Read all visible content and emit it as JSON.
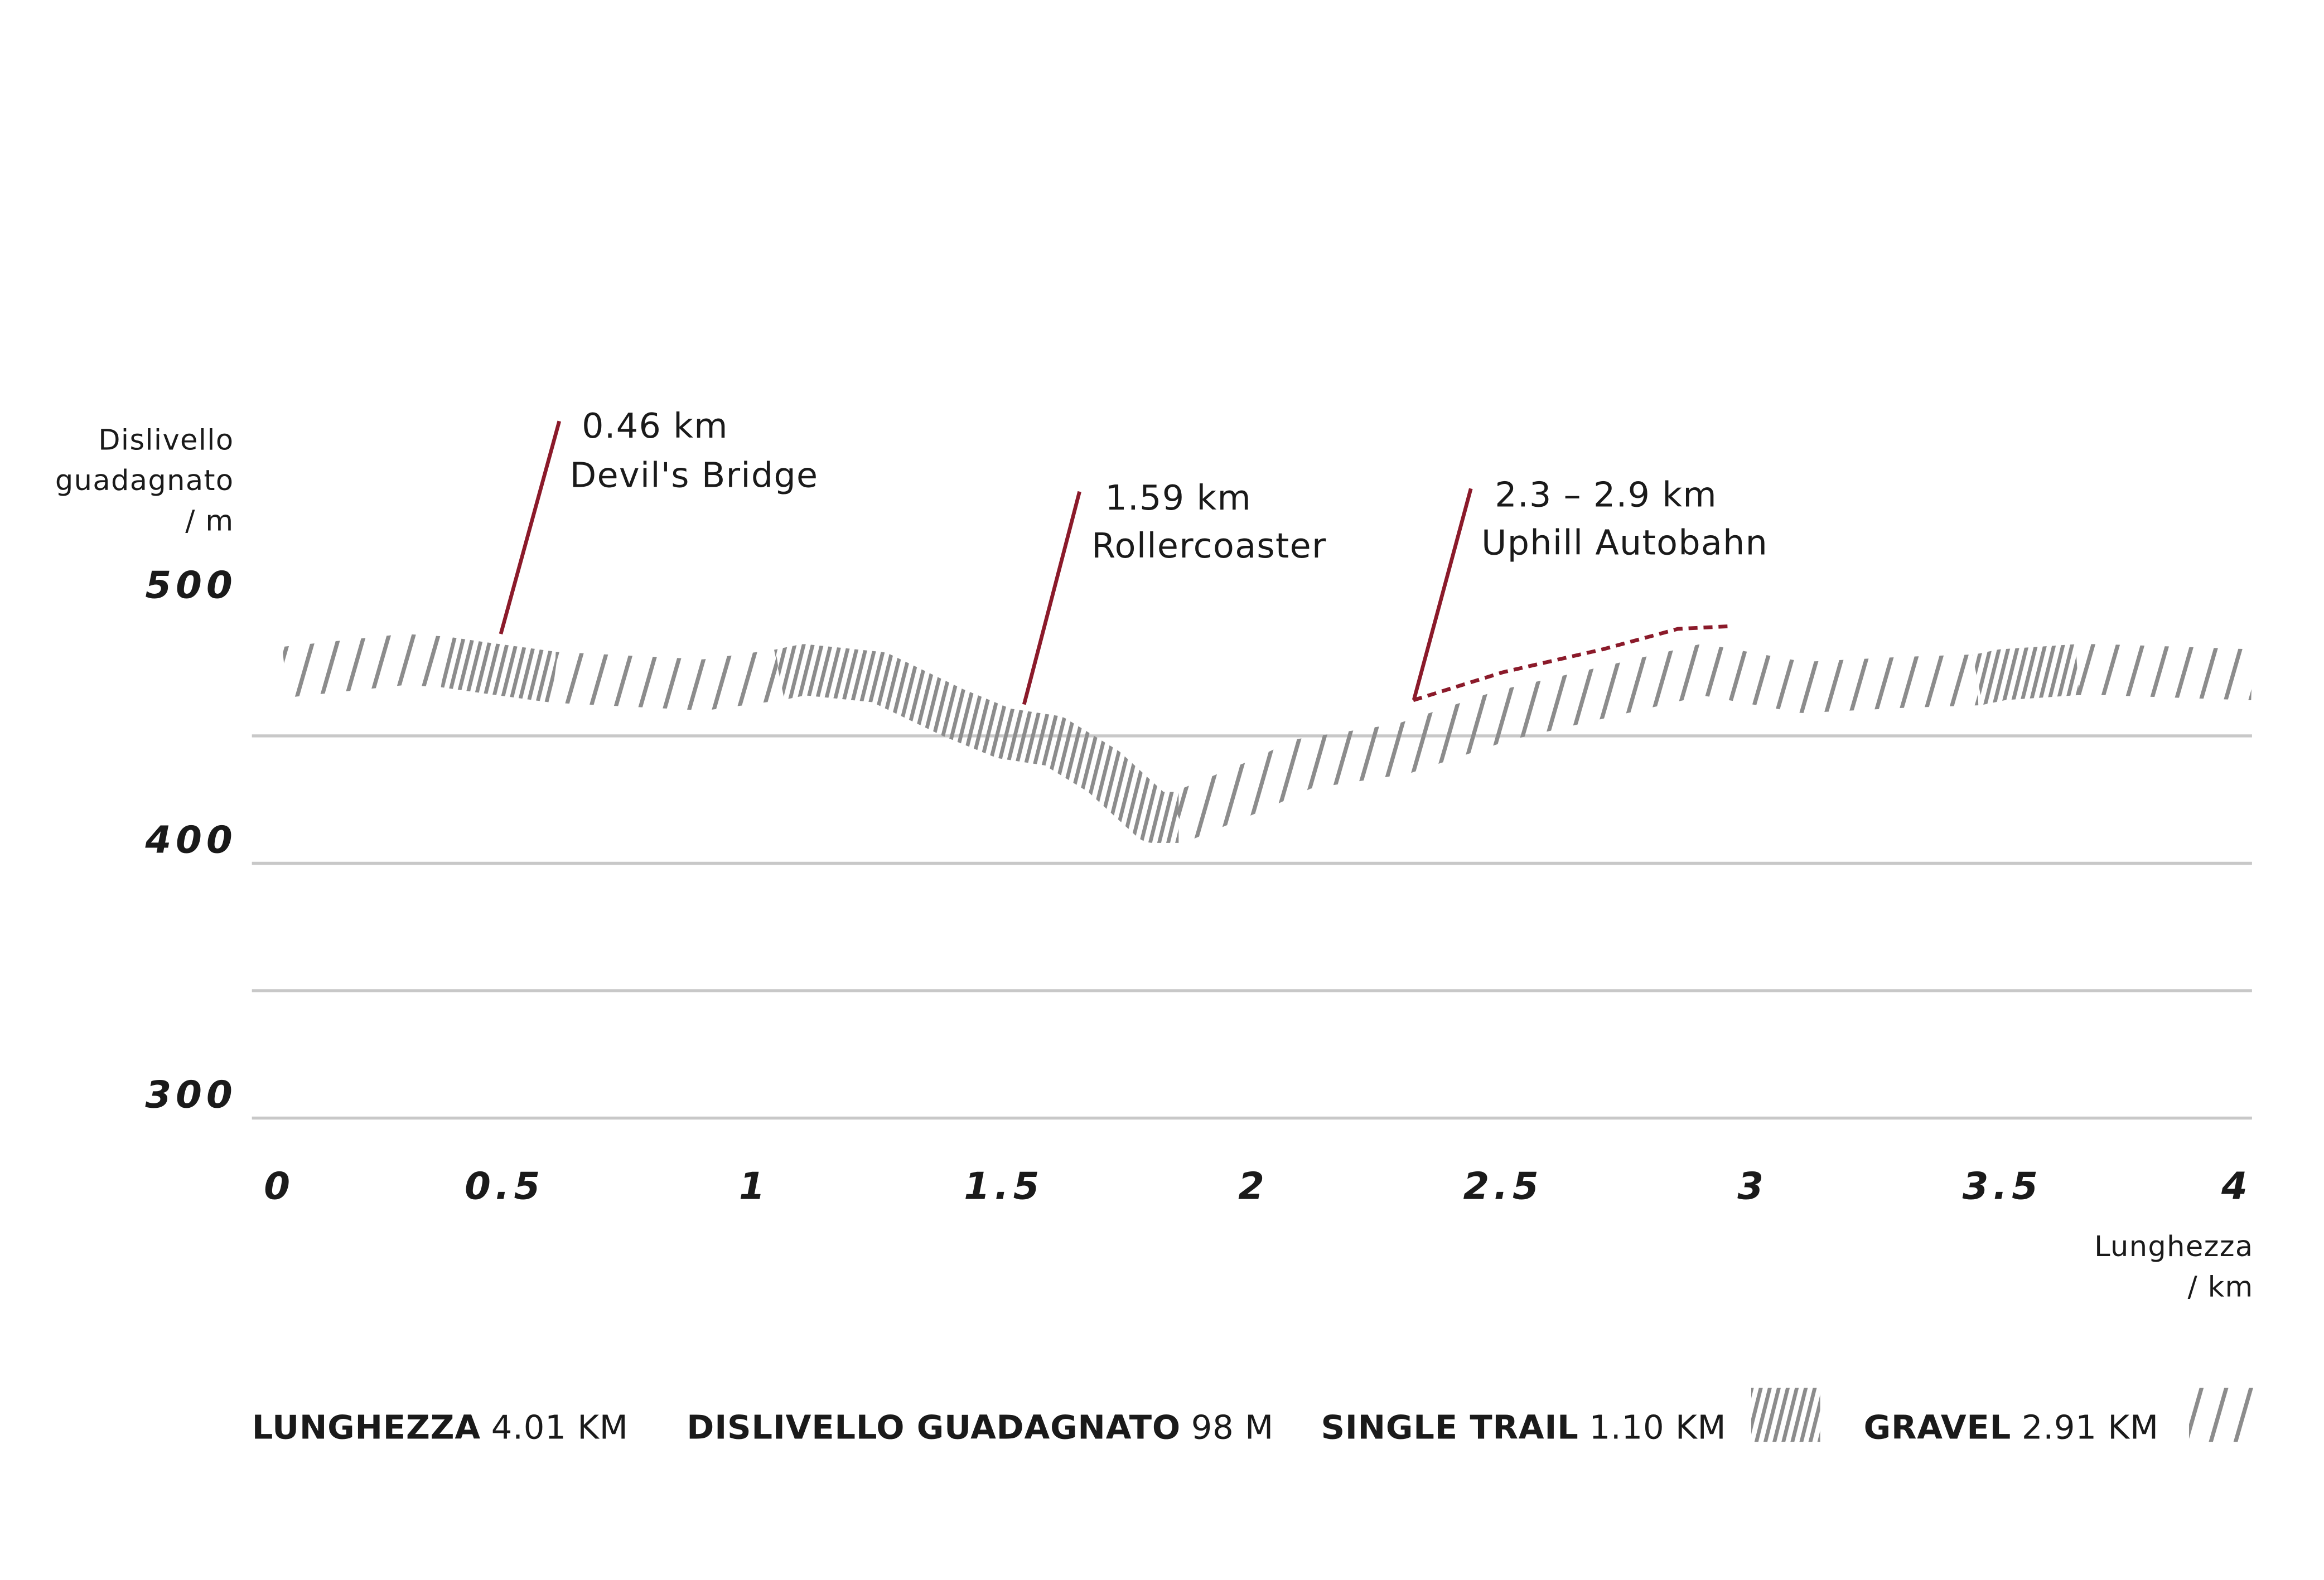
{
  "chart_data": {
    "type": "line",
    "ylabel": [
      "Dislivello",
      "guadagnato",
      "/ m"
    ],
    "xlabel": [
      "Lunghezza",
      "/ km"
    ],
    "xlim": [
      0,
      4
    ],
    "xticks": [
      0,
      0.5,
      1,
      1.5,
      2,
      2.5,
      3,
      3.5,
      4
    ],
    "ylim": [
      300,
      500
    ],
    "yticks": [
      300,
      400,
      500
    ],
    "grid_lines": [
      300,
      350,
      400,
      450
    ],
    "x": [
      0.06,
      0.3,
      0.38,
      0.45,
      0.6,
      0.9,
      1.05,
      1.1,
      1.25,
      1.4,
      1.5,
      1.6,
      1.7,
      1.8,
      1.85,
      2.0,
      2.1,
      2.3,
      2.5,
      2.7,
      2.9,
      3.1,
      3.3,
      3.45,
      3.5,
      3.65,
      3.7,
      4.0
    ],
    "series": [
      {
        "name": "SINGLE TRAIL",
        "length": "1.10 KM",
        "color": "#8c8c8c",
        "pattern": "dense",
        "values": [
          null,
          null,
          479,
          477,
          473,
          null,
          474,
          476,
          473,
          459,
          451,
          448,
          436,
          418,
          418,
          null,
          null,
          null,
          null,
          null,
          null,
          null,
          null,
          472,
          474,
          476,
          null,
          null
        ]
      },
      {
        "name": "GRAVEL",
        "length": "2.91 KM",
        "color": "#8c8c8c",
        "pattern": "sparse",
        "values": [
          475,
          480,
          479,
          null,
          473,
          470,
          474,
          null,
          null,
          null,
          null,
          null,
          null,
          null,
          418,
          430,
          439,
          445,
          458,
          467,
          476,
          469,
          471,
          472,
          null,
          476,
          476,
          474
        ]
      }
    ],
    "stats": [
      {
        "label": "LUNGHEZZA",
        "value": "4.01 KM"
      },
      {
        "label": "DISLIVELLO GUADAGNATO",
        "value": "98 M"
      }
    ],
    "annotations": [
      {
        "label": "0.46 km",
        "name": "Devil's Bridge"
      },
      {
        "label": "1.59 km",
        "name": "Rollercoaster"
      },
      {
        "label": "2.3 – 2.9 km",
        "name": "Uphill Autobahn",
        "color": "#8b1a2a",
        "x": [
          2.32,
          2.5,
          2.7,
          2.85,
          2.95
        ],
        "values": [
          464,
          475,
          484,
          492,
          493
        ]
      }
    ],
    "annotation_color": "#8b1a2a",
    "grid_color": "#c8c8c8"
  }
}
